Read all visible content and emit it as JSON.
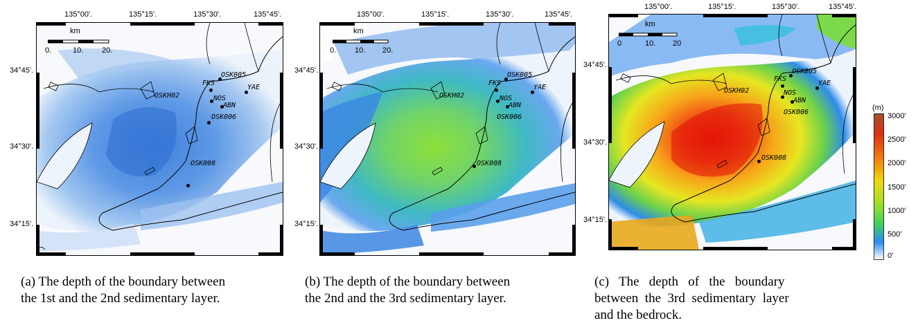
{
  "panels": [
    {
      "id": "a",
      "lon_labels": [
        "135°00'.",
        "135°15'.",
        "135°30'.",
        "135°45'."
      ],
      "lat_labels": [
        "34°45'.",
        "34°30'.",
        "34°15'."
      ],
      "scale": {
        "unit": "km",
        "ticks": [
          "0.",
          "10.",
          "20."
        ]
      },
      "stations": [
        "OSK005",
        "FKS",
        "YAE",
        "OSKH02",
        "NOS",
        "ABN",
        "OSK006",
        "OSK008"
      ],
      "caption_line1": "(a) The depth of the boundary between",
      "caption_line2": "the 1st and the 2nd sedimentary layer.",
      "caption_line3": "",
      "palette": {
        "low": "#cfe0f6",
        "mid": "#7fb0ea",
        "high": "#3d82dc"
      }
    },
    {
      "id": "b",
      "lon_labels": [
        "135°00'.",
        "135°15'.",
        "135°30'.",
        "135°45'."
      ],
      "lat_labels": [
        "34°45'.",
        "34°30'.",
        "34°15'."
      ],
      "scale": {
        "unit": "km",
        "ticks": [
          "0.",
          "10.",
          "20."
        ]
      },
      "stations": [
        "OSK005",
        "FKS",
        "YAE",
        "OSKH02",
        "NOS",
        "ABN",
        "OSK006",
        "OSK008"
      ],
      "caption_line1": "(b) The depth of the boundary between",
      "caption_line2": "the 2nd and the 3rd sedimentary layer.",
      "caption_line3": "",
      "palette": {
        "low": "#5aa0ea",
        "mid": "#4fc7a6",
        "high": "#8fdc3a"
      }
    },
    {
      "id": "c",
      "lon_labels": [
        "135°00'.",
        "135°15'.",
        "135°30'.",
        "135°45'."
      ],
      "lat_labels": [
        "34°45'.",
        "34°30'.",
        "34°15'."
      ],
      "scale": {
        "unit": "km",
        "ticks": [
          "0",
          "10.",
          "20"
        ]
      },
      "stations": [
        "OSK005",
        "FKS",
        "YAE",
        "OSKH02",
        "NOS",
        "ABN",
        "OSK006",
        "OSK008"
      ],
      "caption_line1": "(c)   The   depth   of   the   boundary",
      "caption_line2": "between  the  3rd  sedimentary  layer",
      "caption_line3": "and the bedrock.",
      "palette": {
        "low": "#3d8ce6",
        "mid": "#e8e020",
        "high": "#ef2a12"
      }
    }
  ],
  "colorbar": {
    "unit": "(m)",
    "labels": [
      "3000'",
      "2500'",
      "2000'",
      "1500'",
      "1000'",
      "500'",
      "0'"
    ],
    "colors": [
      "#a0522d",
      "#e03010",
      "#f07a10",
      "#f0d810",
      "#9be02a",
      "#3fcf60",
      "#2e8cf0",
      "#ffffff"
    ]
  }
}
